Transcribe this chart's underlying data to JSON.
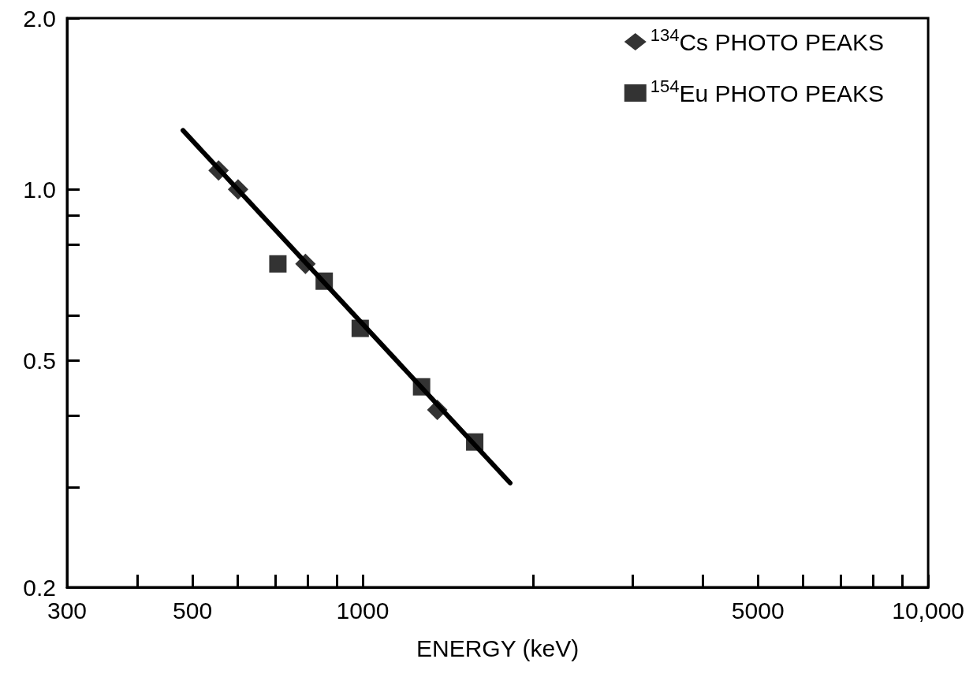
{
  "chart_data": {
    "type": "scatter",
    "xlabel": "ENERGY (keV)",
    "log": "xy",
    "xlim": [
      300,
      10000
    ],
    "ylim": [
      0.2,
      2.0
    ],
    "xticks": [
      300,
      {
        "value": 400,
        "label": null
      },
      500,
      {
        "value": 600,
        "label": null
      },
      {
        "value": 700,
        "label": null
      },
      {
        "value": 800,
        "label": null
      },
      {
        "value": 900,
        "label": null
      },
      1000,
      {
        "value": 2000,
        "label": null
      },
      {
        "value": 3000,
        "label": null
      },
      {
        "value": 4000,
        "label": null
      },
      5000,
      {
        "value": 6000,
        "label": null
      },
      {
        "value": 7000,
        "label": null
      },
      {
        "value": 8000,
        "label": null
      },
      {
        "value": 9000,
        "label": null
      },
      {
        "value": 10000,
        "label": "10,000"
      }
    ],
    "yticks": [
      0.2,
      {
        "value": 0.3,
        "label": null
      },
      {
        "value": 0.4,
        "label": null
      },
      0.5,
      {
        "value": 0.6,
        "label": null
      },
      {
        "value": 0.8,
        "label": null
      },
      {
        "value": 0.9,
        "label": null
      },
      {
        "value": 1.0,
        "label": "1.0"
      },
      {
        "value": 2.0,
        "label": "2.0"
      }
    ],
    "grid": false,
    "legend": "top right",
    "series": [
      {
        "name": "$^{134}$Cs PHOTO PEAKS",
        "color": "#000000",
        "marker": "diamond",
        "x": [
          556,
          602,
          792,
          1355
        ],
        "values": [
          1.08,
          1.0,
          0.74,
          0.41
        ]
      },
      {
        "name": "$^{154}$Eu PHOTO PEAKS",
        "color": "#000000",
        "marker": "square",
        "x": [
          708,
          855,
          990,
          1271,
          1578
        ],
        "values": [
          0.74,
          0.69,
          0.57,
          0.45,
          0.36
        ]
      },
      {
        "type": "line",
        "color": "#000000",
        "marker": "none",
        "line_style": "solid",
        "x": [
          481,
          1823
        ],
        "values": [
          1.27,
          0.305
        ]
      }
    ]
  }
}
